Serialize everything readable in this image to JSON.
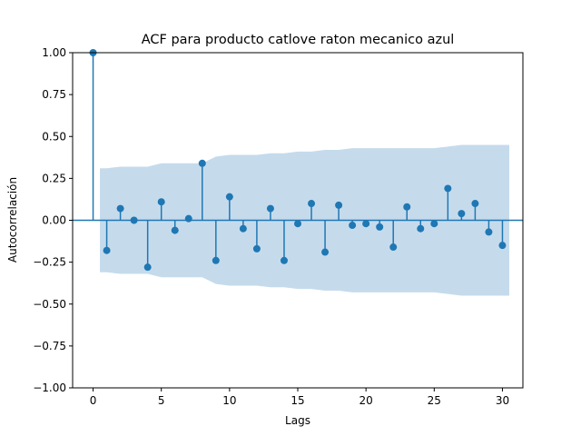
{
  "chart_data": {
    "type": "scatter",
    "title": "ACF para producto catlove raton mecanico azul",
    "xlabel": "Lags",
    "ylabel": "Autocorrelación",
    "xlim": [
      -1.5,
      31.5
    ],
    "ylim": [
      -1.0,
      1.0
    ],
    "xticks": [
      0,
      5,
      10,
      15,
      20,
      25,
      30
    ],
    "yticks": [
      -1.0,
      -0.75,
      -0.5,
      -0.25,
      0.0,
      0.25,
      0.5,
      0.75,
      1.0
    ],
    "ytick_labels": [
      "−1.00",
      "−0.75",
      "−0.50",
      "−0.25",
      "0.00",
      "0.25",
      "0.50",
      "0.75",
      "1.00"
    ],
    "grid": false,
    "colors": {
      "stem": "#1f77b4",
      "band": "#c5dbec",
      "zero_line": "#1f77b4"
    },
    "series": [
      {
        "x": [
          0,
          1,
          2,
          3,
          4,
          5,
          6,
          7,
          8,
          9,
          10,
          11,
          12,
          13,
          14,
          15,
          16,
          17,
          18,
          19,
          20,
          21,
          22,
          23,
          24,
          25,
          26,
          27,
          28,
          29,
          30
        ],
        "values": [
          1.0,
          -0.18,
          0.07,
          0.0,
          -0.28,
          0.11,
          -0.06,
          0.01,
          0.34,
          -0.24,
          0.14,
          -0.05,
          -0.17,
          0.07,
          -0.24,
          -0.02,
          0.1,
          -0.19,
          0.09,
          -0.03,
          -0.02,
          -0.04,
          -0.16,
          0.08,
          -0.05,
          -0.02,
          0.19,
          0.04,
          0.1,
          -0.07,
          -0.15
        ]
      }
    ],
    "confidence_band": {
      "x": [
        0.5,
        1,
        2,
        3,
        4,
        5,
        6,
        7,
        8,
        9,
        10,
        11,
        12,
        13,
        14,
        15,
        16,
        17,
        18,
        19,
        20,
        21,
        22,
        23,
        24,
        25,
        26,
        27,
        28,
        29,
        30.5
      ],
      "upper": [
        0.31,
        0.31,
        0.32,
        0.32,
        0.32,
        0.34,
        0.34,
        0.34,
        0.34,
        0.38,
        0.39,
        0.39,
        0.39,
        0.4,
        0.4,
        0.41,
        0.41,
        0.42,
        0.42,
        0.43,
        0.43,
        0.43,
        0.43,
        0.43,
        0.43,
        0.43,
        0.44,
        0.45,
        0.45,
        0.45,
        0.45
      ]
    }
  }
}
